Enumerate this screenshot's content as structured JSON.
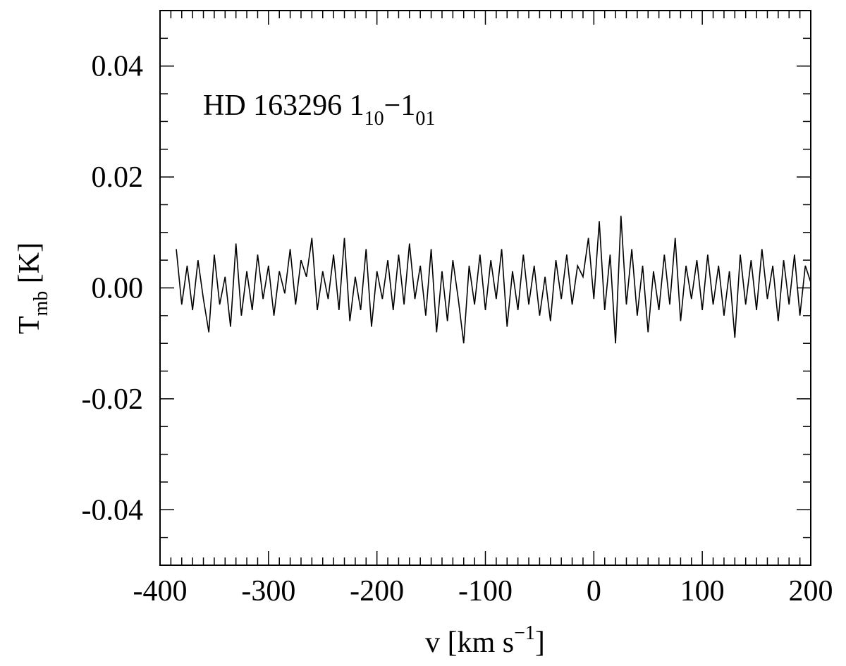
{
  "chart_data": {
    "type": "line",
    "annotation": {
      "parts": [
        "HD 163296 1",
        "10",
        "−1",
        "01"
      ]
    },
    "x_label": {
      "parts": [
        "v [km s",
        "−1",
        "]"
      ]
    },
    "y_label": {
      "parts": [
        "T",
        "mb",
        " [K]"
      ]
    },
    "xlim": [
      -400,
      200
    ],
    "ylim": [
      -0.05,
      0.05
    ],
    "xticks": [
      -400,
      -300,
      -200,
      -100,
      0,
      100,
      200
    ],
    "yticks": [
      -0.04,
      -0.02,
      {
        "value": 0,
        "label": "0.00"
      },
      0.02,
      0.04
    ],
    "xminorticks": [
      -390,
      -380,
      -370,
      -360,
      -350,
      -340,
      -330,
      -320,
      -310,
      -290,
      -280,
      -270,
      -260,
      -250,
      -240,
      -230,
      -220,
      -210,
      -190,
      -180,
      -170,
      -160,
      -150,
      -140,
      -130,
      -120,
      -110,
      -90,
      -80,
      -70,
      -60,
      -50,
      -40,
      -30,
      -20,
      -10,
      10,
      20,
      30,
      40,
      50,
      60,
      70,
      80,
      90,
      110,
      120,
      130,
      140,
      150,
      160,
      170,
      180,
      190
    ],
    "yminorticks": [
      -0.045,
      -0.035,
      -0.03,
      -0.025,
      -0.015,
      -0.01,
      -0.005,
      0.005,
      0.01,
      0.015,
      0.025,
      0.03,
      0.035,
      0.045
    ],
    "series": [
      {
        "color": "#000000",
        "x": [
          -385,
          -380,
          -375,
          -370,
          -365,
          -360,
          -355,
          -350,
          -345,
          -340,
          -335,
          -330,
          -325,
          -320,
          -315,
          -310,
          -305,
          -300,
          -295,
          -290,
          -285,
          -280,
          -275,
          -270,
          -265,
          -260,
          -255,
          -250,
          -245,
          -240,
          -235,
          -230,
          -225,
          -220,
          -215,
          -210,
          -205,
          -200,
          -195,
          -190,
          -185,
          -180,
          -175,
          -170,
          -165,
          -160,
          -155,
          -150,
          -145,
          -140,
          -135,
          -130,
          -125,
          -120,
          -115,
          -110,
          -105,
          -100,
          -95,
          -90,
          -85,
          -80,
          -75,
          -70,
          -65,
          -60,
          -55,
          -50,
          -45,
          -40,
          -35,
          -30,
          -25,
          -20,
          -15,
          -10,
          -5,
          0,
          5,
          10,
          15,
          20,
          25,
          30,
          35,
          40,
          45,
          50,
          55,
          60,
          65,
          70,
          75,
          80,
          85,
          90,
          95,
          100,
          105,
          110,
          115,
          120,
          125,
          130,
          135,
          140,
          145,
          150,
          155,
          160,
          165,
          170,
          175,
          180,
          185,
          190,
          195,
          200
        ],
        "values": [
          0.007,
          -0.003,
          0.004,
          -0.004,
          0.005,
          -0.002,
          -0.008,
          0.006,
          -0.003,
          0.002,
          -0.007,
          0.008,
          -0.005,
          0.003,
          -0.004,
          0.006,
          -0.002,
          0.004,
          -0.005,
          0.003,
          -0.001,
          0.007,
          -0.003,
          0.005,
          0.002,
          0.009,
          -0.004,
          0.003,
          -0.002,
          0.006,
          -0.004,
          0.009,
          -0.006,
          0.002,
          -0.004,
          0.007,
          -0.007,
          0.003,
          -0.002,
          0.005,
          -0.004,
          0.006,
          -0.003,
          0.008,
          -0.002,
          0.004,
          -0.005,
          0.007,
          -0.008,
          0.003,
          -0.006,
          0.005,
          -0.002,
          -0.01,
          0.004,
          -0.003,
          0.006,
          -0.004,
          0.005,
          -0.002,
          0.007,
          -0.007,
          0.003,
          -0.004,
          0.006,
          -0.003,
          0.004,
          -0.005,
          0.002,
          -0.006,
          0.005,
          -0.002,
          0.006,
          -0.003,
          0.004,
          0.002,
          0.009,
          -0.002,
          0.012,
          -0.004,
          0.006,
          -0.01,
          0.013,
          -0.003,
          0.007,
          -0.005,
          0.004,
          -0.008,
          0.003,
          -0.004,
          0.006,
          -0.003,
          0.009,
          -0.006,
          0.004,
          -0.002,
          0.005,
          -0.004,
          0.006,
          -0.003,
          0.004,
          -0.005,
          0.003,
          -0.009,
          0.006,
          -0.003,
          0.005,
          -0.004,
          0.007,
          -0.002,
          0.004,
          -0.006,
          0.005,
          -0.003,
          0.006,
          -0.005,
          0.004,
          0.001
        ]
      }
    ]
  }
}
